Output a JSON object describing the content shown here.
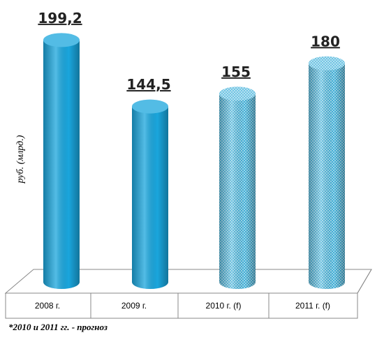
{
  "chart_data": {
    "type": "cylinder",
    "y_label": "руб. (млрд.)",
    "categories": [
      "2008 г.",
      "2009 г.",
      "2010 г. (f)",
      "2011 г. (f)"
    ],
    "values": [
      199.2,
      144.5,
      155,
      180
    ],
    "value_labels": [
      "199,2",
      "144,5",
      "155",
      "180"
    ],
    "patterned": [
      false,
      false,
      true,
      true
    ],
    "color": "#1aa6dd",
    "footnote": "*2010 и 2011 гг. - прогноз"
  }
}
